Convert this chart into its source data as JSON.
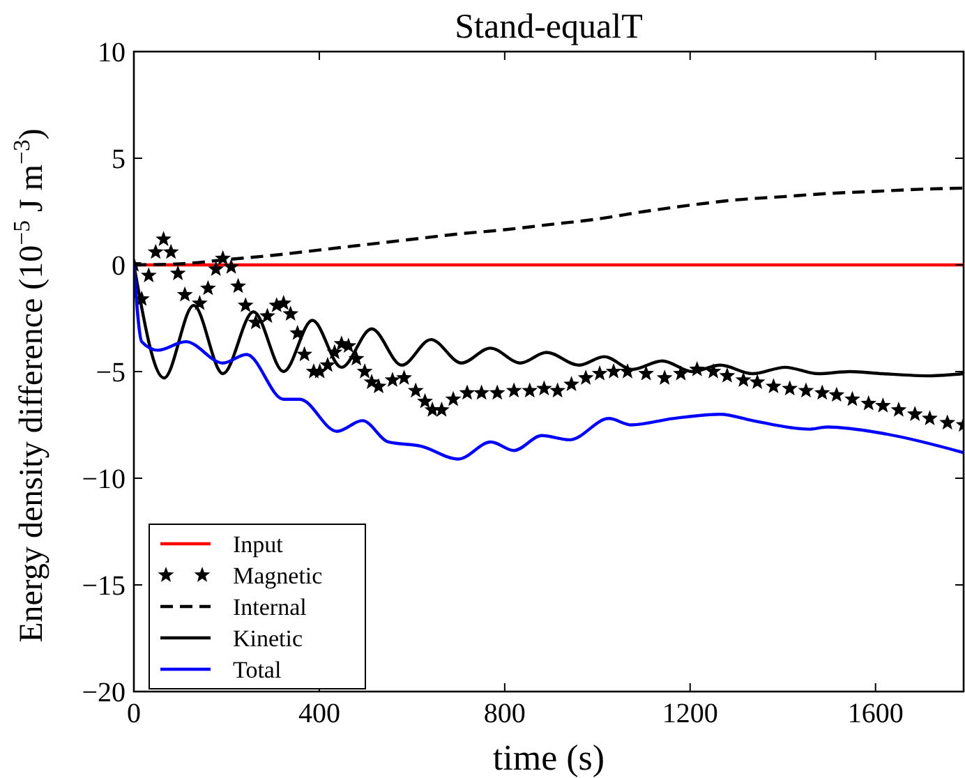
{
  "chart_data": {
    "type": "line",
    "title": "Stand-equalT",
    "xlabel": "time (s)",
    "ylabel": "Energy density difference (10$^{−5}$ J m$^{−3}$)",
    "xlim": [
      0,
      1790
    ],
    "ylim": [
      -20,
      10
    ],
    "xticks": [
      0,
      400,
      800,
      1200,
      1600
    ],
    "yticks": [
      -20,
      -15,
      -10,
      -5,
      0,
      5,
      10
    ],
    "grid": false,
    "legend": "bottom left",
    "series": [
      {
        "name": "Input",
        "color": "#ff0000",
        "line_style": "solid",
        "x": [
          0,
          1790
        ],
        "values": [
          0,
          0
        ]
      },
      {
        "name": "Magnetic",
        "color": "#000000",
        "type": "scatter",
        "marker": "star",
        "x": [
          0,
          17,
          32,
          47,
          64,
          80,
          95,
          110,
          142,
          160,
          177,
          192,
          210,
          225,
          241,
          263,
          288,
          308,
          323,
          338,
          353,
          368,
          388,
          401,
          418,
          433,
          448,
          463,
          480,
          498,
          513,
          528,
          558,
          583,
          608,
          628,
          644,
          664,
          689,
          719,
          750,
          784,
          820,
          854,
          885,
          914,
          944,
          975,
          1005,
          1035,
          1065,
          1105,
          1145,
          1180,
          1215,
          1250,
          1280,
          1315,
          1345,
          1380,
          1415,
          1450,
          1485,
          1516,
          1550,
          1585,
          1616,
          1650,
          1685,
          1717,
          1755,
          1790
        ],
        "values": [
          0,
          -1.6,
          -0.5,
          0.6,
          1.2,
          0.6,
          -0.4,
          -1.4,
          -1.8,
          -1.1,
          -0.2,
          0.3,
          -0.1,
          -1.0,
          -1.9,
          -2.7,
          -2.4,
          -1.9,
          -1.8,
          -2.3,
          -3.2,
          -4.2,
          -5.0,
          -5.0,
          -4.7,
          -4.1,
          -3.7,
          -3.8,
          -4.4,
          -5.0,
          -5.5,
          -5.7,
          -5.4,
          -5.3,
          -5.9,
          -6.4,
          -6.8,
          -6.8,
          -6.3,
          -6.0,
          -6.0,
          -6.0,
          -5.9,
          -5.9,
          -5.8,
          -5.9,
          -5.6,
          -5.3,
          -5.1,
          -5.0,
          -5.0,
          -5.1,
          -5.3,
          -5.1,
          -4.9,
          -5.0,
          -5.2,
          -5.4,
          -5.5,
          -5.7,
          -5.8,
          -5.9,
          -6.0,
          -6.1,
          -6.3,
          -6.5,
          -6.6,
          -6.8,
          -7.0,
          -7.2,
          -7.4,
          -7.5
        ]
      },
      {
        "name": "Internal",
        "color": "#000000",
        "line_style": "dashed",
        "x": [
          0,
          100,
          200,
          300,
          400,
          500,
          600,
          700,
          800,
          900,
          1000,
          1100,
          1200,
          1300,
          1400,
          1500,
          1600,
          1700,
          1790
        ],
        "values": [
          0,
          0.05,
          0.25,
          0.45,
          0.7,
          0.95,
          1.2,
          1.45,
          1.65,
          1.9,
          2.15,
          2.5,
          2.8,
          3.05,
          3.2,
          3.35,
          3.45,
          3.55,
          3.6
        ]
      },
      {
        "name": "Kinetic",
        "color": "#000000",
        "line_style": "solid",
        "x": [
          0,
          65,
          129,
          192,
          258,
          323,
          385,
          448,
          513,
          578,
          641,
          707,
          769,
          834,
          890,
          960,
          1015,
          1075,
          1140,
          1205,
          1265,
          1335,
          1405,
          1476,
          1545,
          1615,
          1717,
          1790
        ],
        "values": [
          0,
          -5.3,
          -1.9,
          -5.1,
          -2.2,
          -5.0,
          -2.6,
          -4.8,
          -3.0,
          -4.7,
          -3.5,
          -4.6,
          -3.9,
          -4.6,
          -4.1,
          -4.7,
          -4.3,
          -4.9,
          -4.5,
          -5.0,
          -4.7,
          -5.1,
          -4.8,
          -5.1,
          -5.0,
          -5.1,
          -5.2,
          -5.1
        ]
      },
      {
        "name": "Total",
        "color": "#0000ff",
        "line_style": "solid",
        "x": [
          0,
          17,
          52,
          112,
          192,
          243,
          323,
          358,
          438,
          493,
          549,
          620,
          700,
          770,
          820,
          880,
          940,
          1025,
          1073,
          1163,
          1265,
          1335,
          1456,
          1496,
          1616,
          1790
        ],
        "values": [
          0,
          -3.6,
          -4.0,
          -3.6,
          -4.6,
          -4.2,
          -6.3,
          -6.3,
          -7.8,
          -7.3,
          -8.3,
          -8.5,
          -9.1,
          -8.3,
          -8.7,
          -8.0,
          -8.2,
          -7.2,
          -7.5,
          -7.2,
          -7.0,
          -7.3,
          -7.7,
          -7.6,
          -7.9,
          -8.8
        ]
      }
    ]
  }
}
